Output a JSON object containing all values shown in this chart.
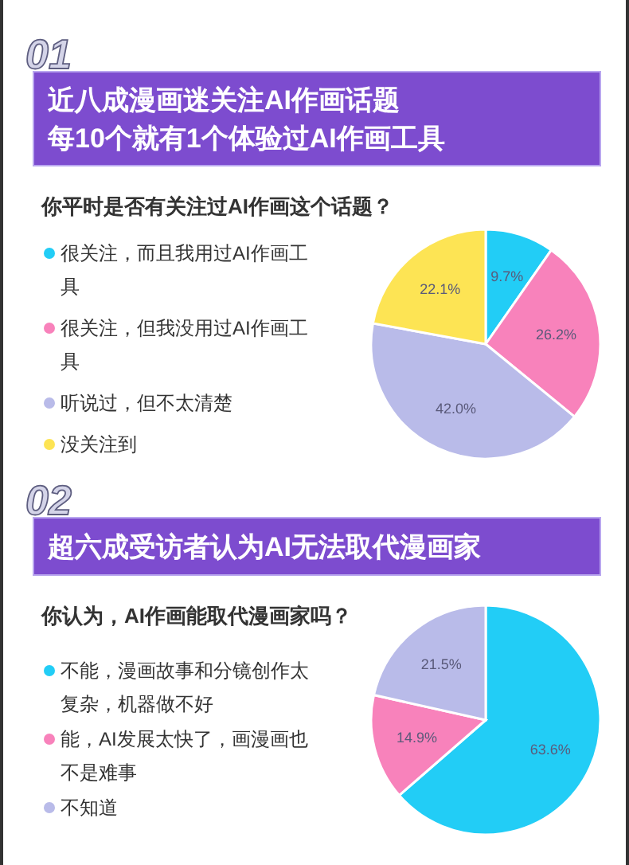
{
  "chart_data": [
    {
      "type": "pie",
      "title": "近八成漫画迷关注AI作画话题每10个就有1个体验过AI作画工具",
      "subtitle": "你平时是否有关注过AI作画这个话题？",
      "annotations": [
        "01"
      ],
      "categories": [
        "很关注，而且我用过AI作画工具",
        "很关注，但我没用过AI作画工具",
        "听说过，但不太清楚",
        "没关注到"
      ],
      "values": [
        9.7,
        26.2,
        42.0,
        22.1
      ],
      "value_labels": [
        "9.7%",
        "26.2%",
        "42.0%",
        "22.1%"
      ],
      "colors": [
        "#22cdf6",
        "#f882bb",
        "#b9bbe9",
        "#fde454"
      ],
      "legend": "left"
    },
    {
      "type": "pie",
      "title": "超六成受访者认为AI无法取代漫画家",
      "subtitle": "你认为，AI作画能取代漫画家吗？",
      "annotations": [
        "02"
      ],
      "categories": [
        "不能，漫画故事和分镜创作太复杂，机器做不好",
        "能，AI发展太快了，画漫画也不是难事",
        "不知道"
      ],
      "values": [
        63.6,
        14.9,
        21.5
      ],
      "value_labels": [
        "63.6%",
        "14.9%",
        "21.5%"
      ],
      "colors": [
        "#22cdf6",
        "#f882bb",
        "#b9bbe9"
      ],
      "legend": "left"
    }
  ]
}
